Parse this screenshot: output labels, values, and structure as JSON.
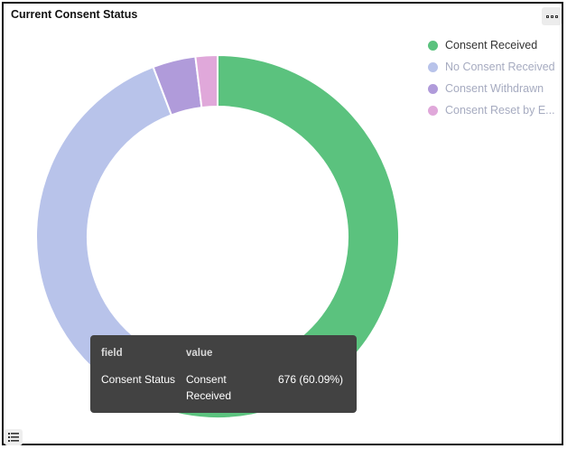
{
  "panel": {
    "title": "Current Consent Status"
  },
  "chart_data": {
    "type": "pie",
    "donut": true,
    "categories": [
      "Consent Received",
      "No Consent Received",
      "Consent Withdrawn",
      "Consent Reset by E..."
    ],
    "values": [
      676,
      384,
      43,
      22
    ],
    "percentages": [
      60.09,
      34.13,
      3.82,
      1.96
    ],
    "colors": [
      "#5bc27e",
      "#b8c3ea",
      "#b09bda",
      "#e0a8da"
    ],
    "legend_position": "top-right",
    "legend_states": [
      "active",
      "dim",
      "dim",
      "dim"
    ]
  },
  "tooltip": {
    "header_field": "field",
    "header_value": "value",
    "field": "Consent Status",
    "value_line1": "Consent",
    "value_line2": "Received",
    "amount": "676 (60.09%)"
  },
  "icons": {
    "options": "ellipsis-icon",
    "table_toggle": "list-icon"
  }
}
